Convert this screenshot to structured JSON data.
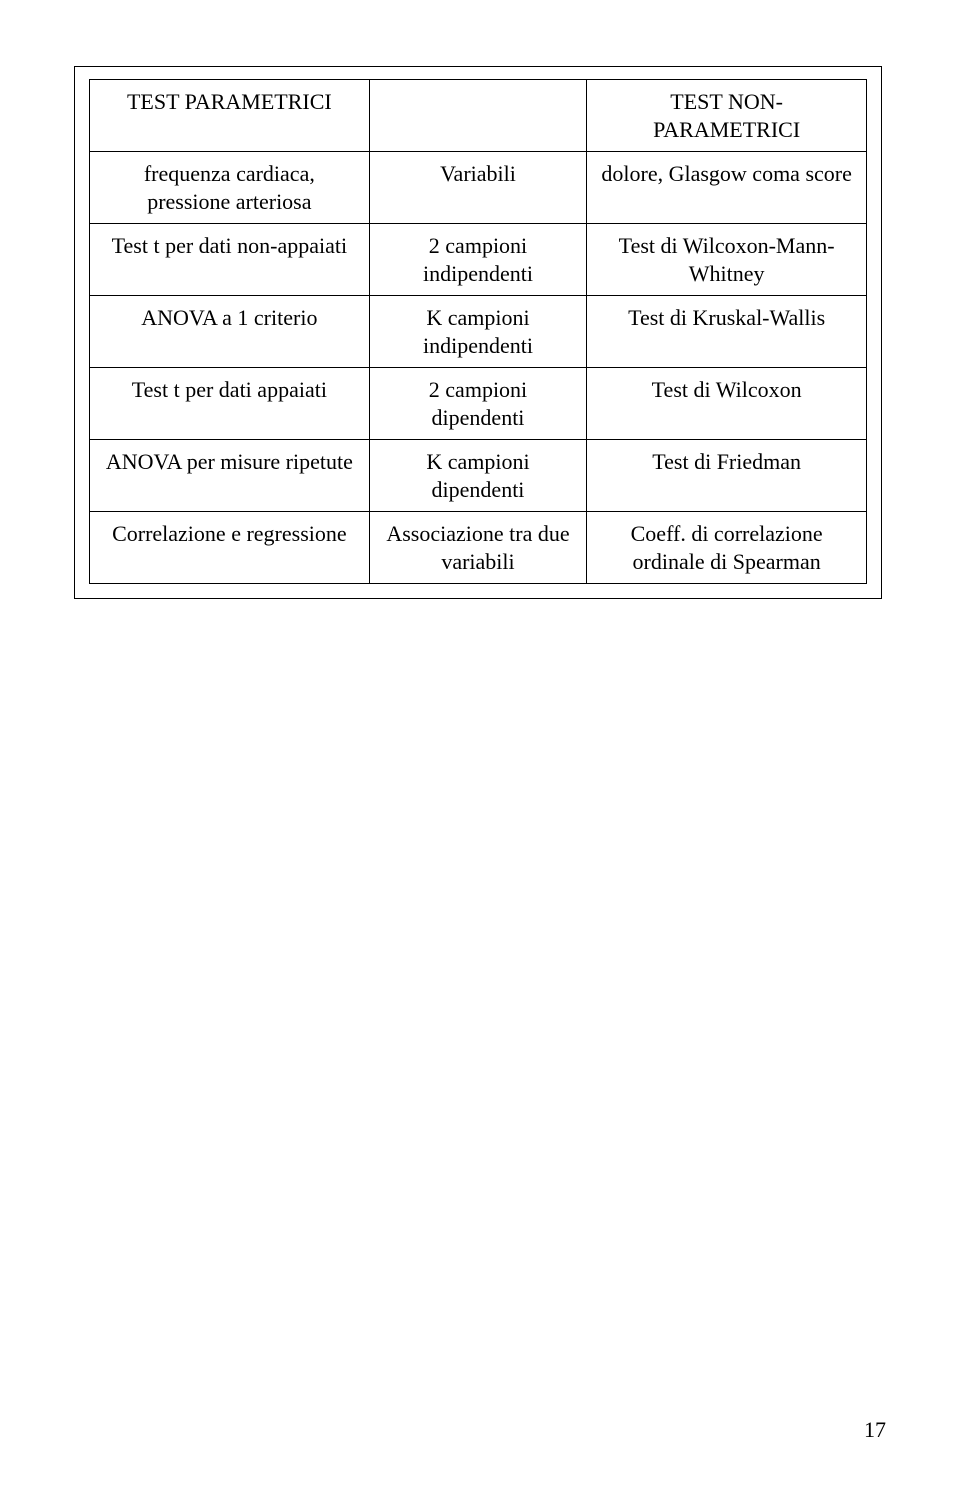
{
  "table": {
    "rows": [
      {
        "col1": "TEST PARAMETRICI",
        "col2": "",
        "col3": "TEST NON-PARAMETRICI"
      },
      {
        "col1": "frequenza cardiaca, pressione arteriosa",
        "col2": "Variabili",
        "col3": "dolore,\nGlasgow coma score"
      },
      {
        "col1": "Test t per dati non-appaiati",
        "col2": "2 campioni indipendenti",
        "col3": "Test di Wilcoxon-Mann-Whitney"
      },
      {
        "col1": "ANOVA a 1 criterio",
        "col2": "K campioni indipendenti",
        "col3": "Test di Kruskal-Wallis"
      },
      {
        "col1": "Test t per dati appaiati",
        "col2": "2 campioni dipendenti",
        "col3": "Test di Wilcoxon"
      },
      {
        "col1": "ANOVA per misure ripetute",
        "col2": "K campioni dipendenti",
        "col3": "Test di Friedman"
      },
      {
        "col1": "Correlazione e regressione",
        "col2": "Associazione tra due variabili",
        "col3": "Coeff. di correlazione ordinale di Spearman"
      }
    ]
  },
  "pageNumber": "17"
}
